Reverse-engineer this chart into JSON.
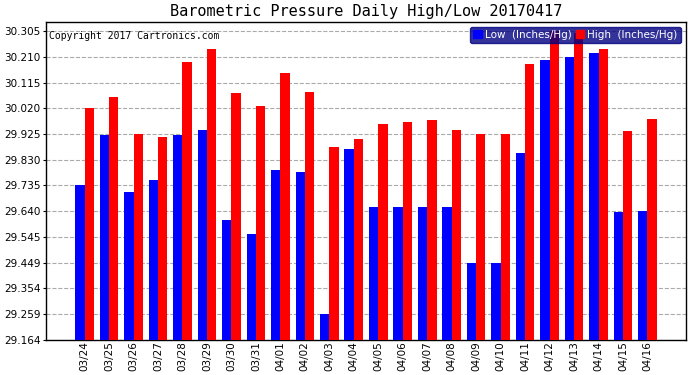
{
  "title": "Barometric Pressure Daily High/Low 20170417",
  "copyright": "Copyright 2017 Cartronics.com",
  "ylabel_low": "Low  (Inches/Hg)",
  "ylabel_high": "High  (Inches/Hg)",
  "dates": [
    "03/24",
    "03/25",
    "03/26",
    "03/27",
    "03/28",
    "03/29",
    "03/30",
    "03/31",
    "04/01",
    "04/02",
    "04/03",
    "04/04",
    "04/05",
    "04/06",
    "04/07",
    "04/08",
    "04/09",
    "04/10",
    "04/11",
    "04/12",
    "04/13",
    "04/14",
    "04/15",
    "04/16"
  ],
  "low_values": [
    29.735,
    29.92,
    29.71,
    29.755,
    29.92,
    29.94,
    29.605,
    29.555,
    29.79,
    29.785,
    29.259,
    29.87,
    29.655,
    29.655,
    29.655,
    29.655,
    29.449,
    29.449,
    29.855,
    30.2,
    30.21,
    30.225,
    29.635,
    29.64
  ],
  "high_values": [
    30.02,
    30.06,
    29.925,
    29.915,
    30.19,
    30.24,
    30.075,
    30.03,
    30.15,
    30.08,
    29.875,
    29.905,
    29.96,
    29.97,
    29.975,
    29.94,
    29.925,
    29.925,
    30.185,
    30.305,
    30.3,
    30.24,
    29.935,
    29.98
  ],
  "ymin": 29.164,
  "ymax": 30.34,
  "yticks": [
    29.164,
    29.259,
    29.354,
    29.449,
    29.545,
    29.64,
    29.735,
    29.83,
    29.925,
    30.02,
    30.115,
    30.21,
    30.305
  ],
  "low_color": "#0000ff",
  "high_color": "#ff0000",
  "bg_color": "#ffffff",
  "grid_color": "#aaaaaa",
  "title_fontsize": 11,
  "tick_fontsize": 7.5,
  "legend_fontsize": 7.5,
  "bar_width": 0.38
}
